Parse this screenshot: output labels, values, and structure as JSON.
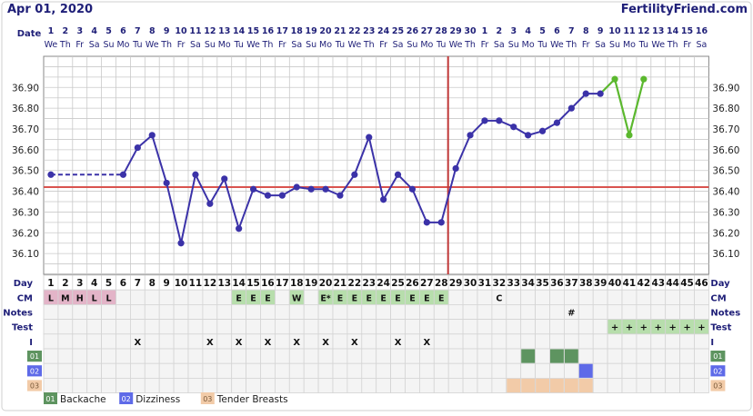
{
  "header": {
    "date": "Apr 01, 2020",
    "brand": "FertilityFriend.com"
  },
  "labels": {
    "date": "Date",
    "day": "Day",
    "cm": "CM",
    "notes": "Notes",
    "test": "Test",
    "intercourse": "I"
  },
  "colors": {
    "temp_line": "#3b32a8",
    "projected_line": "#5bb82e",
    "coverline": "#d9534f",
    "ovulation_line": "#c23a3a",
    "grid": "#c9c9c9",
    "label_text": "#1f1f78",
    "cm_menses": "#e3b4c8",
    "cm_fertile": "#b7deac",
    "test_positive": "#b7deac",
    "symptom_01": "#5e9460",
    "symptom_02": "#5e6ae8",
    "symptom_03": "#f2cba8",
    "header_bg": "#ffffff"
  },
  "chart_data": {
    "type": "line",
    "title": "",
    "ylabel": "",
    "ylim": [
      36.0,
      37.05
    ],
    "y_ticks": [
      "36.10",
      "36.20",
      "36.30",
      "36.40",
      "36.50",
      "36.60",
      "36.70",
      "36.80",
      "36.90"
    ],
    "days": [
      1,
      2,
      3,
      4,
      5,
      6,
      7,
      8,
      9,
      10,
      11,
      12,
      13,
      14,
      15,
      16,
      17,
      18,
      19,
      20,
      21,
      22,
      23,
      24,
      25,
      26,
      27,
      28,
      29,
      30,
      31,
      32,
      33,
      34,
      35,
      36,
      37,
      38,
      39,
      40,
      41,
      42,
      43,
      44,
      45,
      46
    ],
    "dates": [
      "1",
      "2",
      "3",
      "4",
      "5",
      "6",
      "7",
      "8",
      "9",
      "10",
      "11",
      "12",
      "13",
      "14",
      "15",
      "16",
      "17",
      "18",
      "19",
      "20",
      "21",
      "22",
      "23",
      "24",
      "25",
      "26",
      "27",
      "28",
      "29",
      "30",
      "1",
      "2",
      "3",
      "4",
      "5",
      "6",
      "7",
      "8",
      "9",
      "10",
      "11",
      "12",
      "13",
      "14",
      "15",
      "16"
    ],
    "weekdays": [
      "We",
      "Th",
      "Fr",
      "Sa",
      "Su",
      "Mo",
      "Tu",
      "We",
      "Th",
      "Fr",
      "Sa",
      "Su",
      "Mo",
      "Tu",
      "We",
      "Th",
      "Fr",
      "Sa",
      "Su",
      "Mo",
      "Tu",
      "We",
      "Th",
      "Fr",
      "Sa",
      "Su",
      "Mo",
      "Tu",
      "We",
      "Th",
      "Fr",
      "Sa",
      "Su",
      "Mo",
      "Tu",
      "We",
      "Th",
      "Fr",
      "Sa",
      "Su",
      "Mo",
      "Tu",
      "We",
      "Th",
      "Fr",
      "Sa"
    ],
    "series": [
      {
        "values": [
          {
            "day": 1,
            "temp": 36.48
          },
          {
            "day": 6,
            "temp": 36.48
          },
          {
            "day": 7,
            "temp": 36.61
          },
          {
            "day": 8,
            "temp": 36.67
          },
          {
            "day": 9,
            "temp": 36.44
          },
          {
            "day": 10,
            "temp": 36.15
          },
          {
            "day": 11,
            "temp": 36.48
          },
          {
            "day": 12,
            "temp": 36.34
          },
          {
            "day": 13,
            "temp": 36.46
          },
          {
            "day": 14,
            "temp": 36.22
          },
          {
            "day": 15,
            "temp": 36.41
          },
          {
            "day": 16,
            "temp": 36.38
          },
          {
            "day": 17,
            "temp": 36.38
          },
          {
            "day": 18,
            "temp": 36.42
          },
          {
            "day": 19,
            "temp": 36.41
          },
          {
            "day": 20,
            "temp": 36.41
          },
          {
            "day": 21,
            "temp": 36.38
          },
          {
            "day": 22,
            "temp": 36.48
          },
          {
            "day": 23,
            "temp": 36.66
          },
          {
            "day": 24,
            "temp": 36.36
          },
          {
            "day": 25,
            "temp": 36.48
          },
          {
            "day": 26,
            "temp": 36.41
          },
          {
            "day": 27,
            "temp": 36.25
          },
          {
            "day": 28,
            "temp": 36.25
          },
          {
            "day": 29,
            "temp": 36.51
          },
          {
            "day": 30,
            "temp": 36.67
          },
          {
            "day": 31,
            "temp": 36.74
          },
          {
            "day": 32,
            "temp": 36.74
          },
          {
            "day": 33,
            "temp": 36.71
          },
          {
            "day": 34,
            "temp": 36.67
          },
          {
            "day": 35,
            "temp": 36.69
          },
          {
            "day": 36,
            "temp": 36.73
          },
          {
            "day": 37,
            "temp": 36.8
          },
          {
            "day": 38,
            "temp": 36.87
          },
          {
            "day": 39,
            "temp": 36.87
          }
        ]
      },
      {
        "values": [
          {
            "day": 39,
            "temp": 36.87
          },
          {
            "day": 40,
            "temp": 36.94
          },
          {
            "day": 41,
            "temp": 36.67
          },
          {
            "day": 42,
            "temp": 36.94
          }
        ]
      }
    ],
    "coverline": 36.42,
    "ovulation_day": 28,
    "cm": [
      {
        "day": 1,
        "code": "L",
        "kind": "menses"
      },
      {
        "day": 2,
        "code": "M",
        "kind": "menses"
      },
      {
        "day": 3,
        "code": "H",
        "kind": "menses"
      },
      {
        "day": 4,
        "code": "L",
        "kind": "menses"
      },
      {
        "day": 5,
        "code": "L",
        "kind": "menses"
      },
      {
        "day": 14,
        "code": "E",
        "kind": "fertile"
      },
      {
        "day": 15,
        "code": "E",
        "kind": "fertile"
      },
      {
        "day": 16,
        "code": "E",
        "kind": "fertile"
      },
      {
        "day": 18,
        "code": "W",
        "kind": "fertile"
      },
      {
        "day": 20,
        "code": "E*",
        "kind": "fertile"
      },
      {
        "day": 21,
        "code": "E",
        "kind": "fertile"
      },
      {
        "day": 22,
        "code": "E",
        "kind": "fertile"
      },
      {
        "day": 23,
        "code": "E",
        "kind": "fertile"
      },
      {
        "day": 24,
        "code": "E",
        "kind": "fertile"
      },
      {
        "day": 25,
        "code": "E",
        "kind": "fertile"
      },
      {
        "day": 26,
        "code": "E",
        "kind": "fertile"
      },
      {
        "day": 27,
        "code": "E",
        "kind": "fertile"
      },
      {
        "day": 28,
        "code": "E",
        "kind": "fertile"
      },
      {
        "day": 32,
        "code": "C",
        "kind": "plain"
      }
    ],
    "notes": [
      {
        "day": 37,
        "text": "#"
      }
    ],
    "tests": {
      "positive_days": [
        40,
        41,
        42,
        43,
        44,
        45,
        46
      ],
      "marker": "+"
    },
    "intercourse": {
      "days": [
        7,
        12,
        14,
        16,
        18,
        20,
        22,
        25,
        27
      ],
      "marker": "X"
    },
    "symptoms": [
      {
        "code": "01",
        "name": "Backache",
        "color_key": "symptom_01",
        "days": [
          34,
          36,
          37
        ]
      },
      {
        "code": "02",
        "name": "Dizziness",
        "color_key": "symptom_02",
        "days": [
          38
        ]
      },
      {
        "code": "03",
        "name": "Tender Breasts",
        "color_key": "symptom_03",
        "days": [
          33,
          34,
          35,
          36,
          37,
          38
        ]
      }
    ]
  }
}
